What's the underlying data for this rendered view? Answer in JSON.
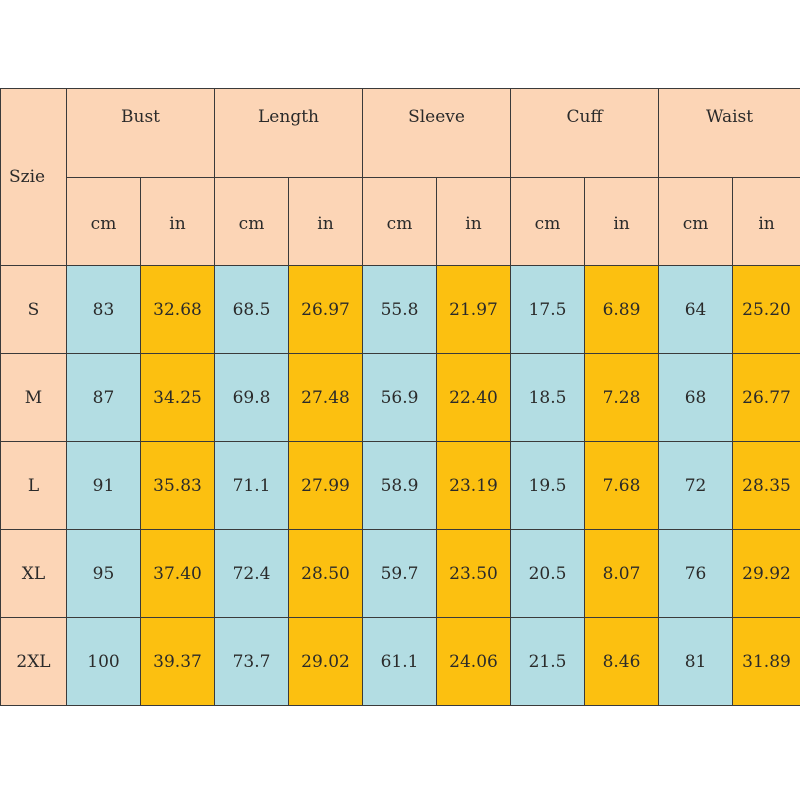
{
  "table": {
    "size_header": "Szie",
    "measurements": [
      "Bust",
      "Length",
      "Sleeve",
      "Cuff",
      "Waist"
    ],
    "units": [
      "cm",
      "in"
    ],
    "rows": [
      {
        "size": "S",
        "values": [
          "83",
          "32.68",
          "68.5",
          "26.97",
          "55.8",
          "21.97",
          "17.5",
          "6.89",
          "64",
          "25.20"
        ]
      },
      {
        "size": "M",
        "values": [
          "87",
          "34.25",
          "69.8",
          "27.48",
          "56.9",
          "22.40",
          "18.5",
          "7.28",
          "68",
          "26.77"
        ]
      },
      {
        "size": "L",
        "values": [
          "91",
          "35.83",
          "71.1",
          "27.99",
          "58.9",
          "23.19",
          "19.5",
          "7.68",
          "72",
          "28.35"
        ]
      },
      {
        "size": "XL",
        "values": [
          "95",
          "37.40",
          "72.4",
          "28.50",
          "59.7",
          "23.50",
          "20.5",
          "8.07",
          "76",
          "29.92"
        ]
      },
      {
        "size": "2XL",
        "values": [
          "100",
          "39.37",
          "73.7",
          "29.02",
          "61.1",
          "24.06",
          "21.5",
          "8.46",
          "81",
          "31.89"
        ]
      }
    ]
  },
  "colors": {
    "header_bg": "#fcd5b6",
    "cm_bg": "#b3dde3",
    "in_bg": "#fcc010",
    "border": "#3a3a3a"
  }
}
